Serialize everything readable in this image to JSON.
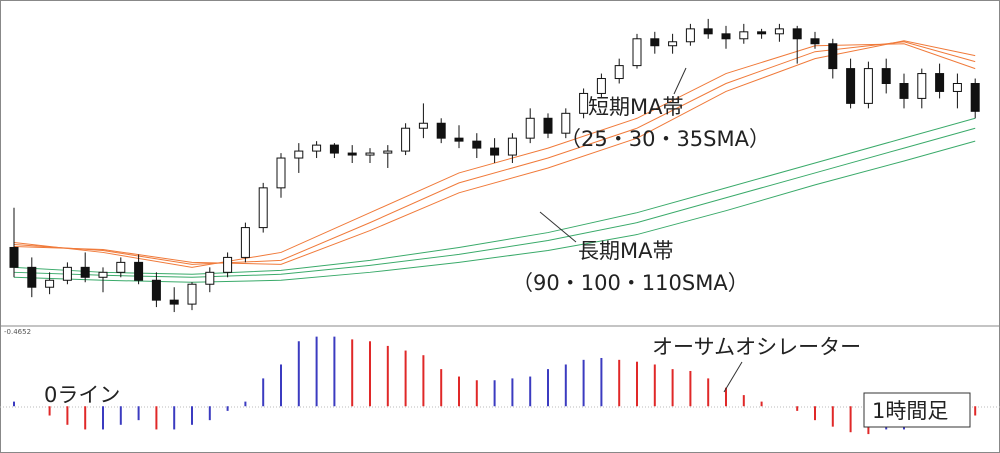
{
  "chart_data": {
    "type": "candlestick",
    "ylim": [
      0,
      320
    ],
    "candles": [
      [
        75,
        115,
        45,
        55
      ],
      [
        55,
        65,
        25,
        35
      ],
      [
        35,
        50,
        28,
        42
      ],
      [
        42,
        60,
        38,
        55
      ],
      [
        55,
        70,
        40,
        45
      ],
      [
        45,
        55,
        30,
        50
      ],
      [
        50,
        65,
        45,
        60
      ],
      [
        60,
        68,
        38,
        42
      ],
      [
        42,
        50,
        15,
        22
      ],
      [
        22,
        35,
        10,
        18
      ],
      [
        18,
        40,
        12,
        38
      ],
      [
        38,
        55,
        30,
        50
      ],
      [
        50,
        70,
        45,
        65
      ],
      [
        65,
        100,
        60,
        95
      ],
      [
        95,
        140,
        90,
        135
      ],
      [
        135,
        170,
        125,
        165
      ],
      [
        165,
        180,
        150,
        172
      ],
      [
        172,
        182,
        165,
        178
      ],
      [
        178,
        180,
        165,
        170
      ],
      [
        170,
        178,
        160,
        168
      ],
      [
        168,
        175,
        160,
        170
      ],
      [
        170,
        178,
        155,
        172
      ],
      [
        172,
        200,
        168,
        195
      ],
      [
        195,
        220,
        185,
        200
      ],
      [
        200,
        205,
        180,
        185
      ],
      [
        185,
        198,
        175,
        182
      ],
      [
        182,
        190,
        165,
        175
      ],
      [
        175,
        185,
        160,
        168
      ],
      [
        168,
        190,
        160,
        185
      ],
      [
        185,
        215,
        180,
        205
      ],
      [
        205,
        210,
        185,
        190
      ],
      [
        190,
        215,
        185,
        210
      ],
      [
        210,
        235,
        205,
        230
      ],
      [
        230,
        250,
        225,
        245
      ],
      [
        245,
        265,
        240,
        258
      ],
      [
        258,
        290,
        255,
        285
      ],
      [
        285,
        292,
        270,
        278
      ],
      [
        278,
        290,
        270,
        282
      ],
      [
        282,
        300,
        278,
        295
      ],
      [
        295,
        305,
        285,
        290
      ],
      [
        290,
        298,
        275,
        285
      ],
      [
        285,
        300,
        280,
        292
      ],
      [
        292,
        295,
        285,
        290
      ],
      [
        290,
        300,
        282,
        295
      ],
      [
        295,
        298,
        260,
        285
      ],
      [
        285,
        292,
        275,
        280
      ],
      [
        280,
        285,
        245,
        255
      ],
      [
        255,
        265,
        215,
        220
      ],
      [
        220,
        262,
        215,
        255
      ],
      [
        255,
        265,
        230,
        240
      ],
      [
        240,
        250,
        215,
        225
      ],
      [
        225,
        255,
        215,
        250
      ],
      [
        250,
        260,
        225,
        232
      ],
      [
        232,
        250,
        215,
        240
      ],
      [
        240,
        245,
        205,
        212
      ]
    ],
    "ma_x": [
      0,
      5,
      10,
      15,
      20,
      25,
      30,
      35,
      40,
      45,
      50,
      54
    ],
    "ma_series": [
      {
        "color": "#f07a3a",
        "values": [
          80,
          70,
          55,
          70,
          110,
          150,
          175,
          205,
          250,
          278,
          280,
          255
        ]
      },
      {
        "color": "#f07a3a",
        "values": [
          78,
          72,
          58,
          62,
          100,
          140,
          165,
          195,
          240,
          272,
          282,
          262
        ]
      },
      {
        "color": "#f07a3a",
        "values": [
          76,
          73,
          60,
          58,
          92,
          130,
          155,
          185,
          232,
          265,
          283,
          268
        ]
      },
      {
        "color": "#3aaa6a",
        "values": [
          55,
          50,
          48,
          52,
          62,
          75,
          90,
          110,
          135,
          160,
          185,
          205
        ]
      },
      {
        "color": "#3aaa6a",
        "values": [
          50,
          47,
          45,
          48,
          57,
          68,
          82,
          100,
          125,
          150,
          175,
          195
        ]
      },
      {
        "color": "#3aaa6a",
        "values": [
          45,
          42,
          40,
          42,
          50,
          60,
          72,
          88,
          112,
          138,
          162,
          182
        ]
      }
    ],
    "oscillator": {
      "ylim": [
        -45,
        80
      ],
      "up_color": "#3b3bc0",
      "down_color": "#e02828",
      "label": "-0.4652",
      "values": [
        5,
        0,
        -10,
        -20,
        -25,
        -25,
        -20,
        -15,
        -25,
        -25,
        -20,
        -15,
        -5,
        5,
        30,
        45,
        70,
        75,
        75,
        72,
        70,
        65,
        60,
        55,
        40,
        32,
        28,
        28,
        30,
        32,
        40,
        45,
        50,
        52,
        50,
        48,
        45,
        40,
        38,
        30,
        20,
        12,
        5,
        0,
        -5,
        -15,
        -22,
        -28,
        -30,
        -25,
        -25,
        -20,
        -15,
        -5,
        -10
      ]
    },
    "annotations": {
      "short_ma": "短期MA帯",
      "short_ma_periods": "（25・30・35SMA）",
      "long_ma": "長期MA帯",
      "long_ma_periods": "（90・100・110SMA）",
      "oscillator": "オーサムオシレーター",
      "zero_line": "0ライン",
      "timeframe": "1時間足"
    }
  }
}
